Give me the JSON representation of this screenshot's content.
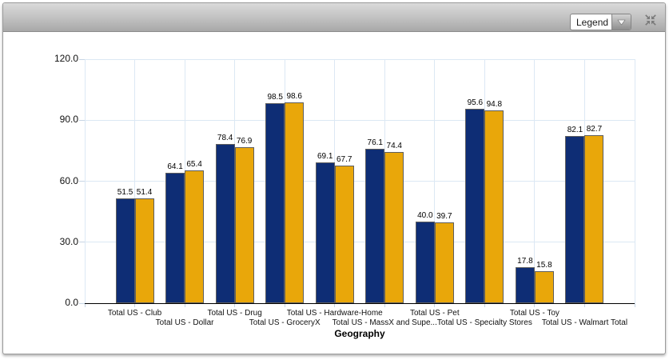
{
  "toolbar": {
    "legend_label": "Legend"
  },
  "chart_data": {
    "type": "bar",
    "title": "",
    "xlabel": "Geography",
    "ylabel": "",
    "ylim": [
      0,
      120
    ],
    "yticks": [
      0,
      30,
      60,
      90,
      120
    ],
    "grid": true,
    "grid_color": "#dce8f4",
    "value_labels": true,
    "legend_position": "collapsed-dropdown",
    "categories": [
      "Total US - Club",
      "Total US - Dollar",
      "Total US - Drug",
      "Total US - GroceryX",
      "Total US - Hardware-Home",
      "Total US - MassX and Supe...",
      "Total US - Pet",
      "Total US - Specialty Stores",
      "Total US - Toy",
      "Total US - Walmart Total"
    ],
    "series": [
      {
        "color": "#0e2d75",
        "values": [
          51.5,
          64.1,
          78.4,
          98.5,
          69.1,
          76.1,
          40.0,
          95.6,
          17.8,
          82.1
        ]
      },
      {
        "color": "#e9a70a",
        "values": [
          51.4,
          65.4,
          76.9,
          98.6,
          67.7,
          74.4,
          39.7,
          94.8,
          15.8,
          82.7
        ]
      }
    ]
  }
}
